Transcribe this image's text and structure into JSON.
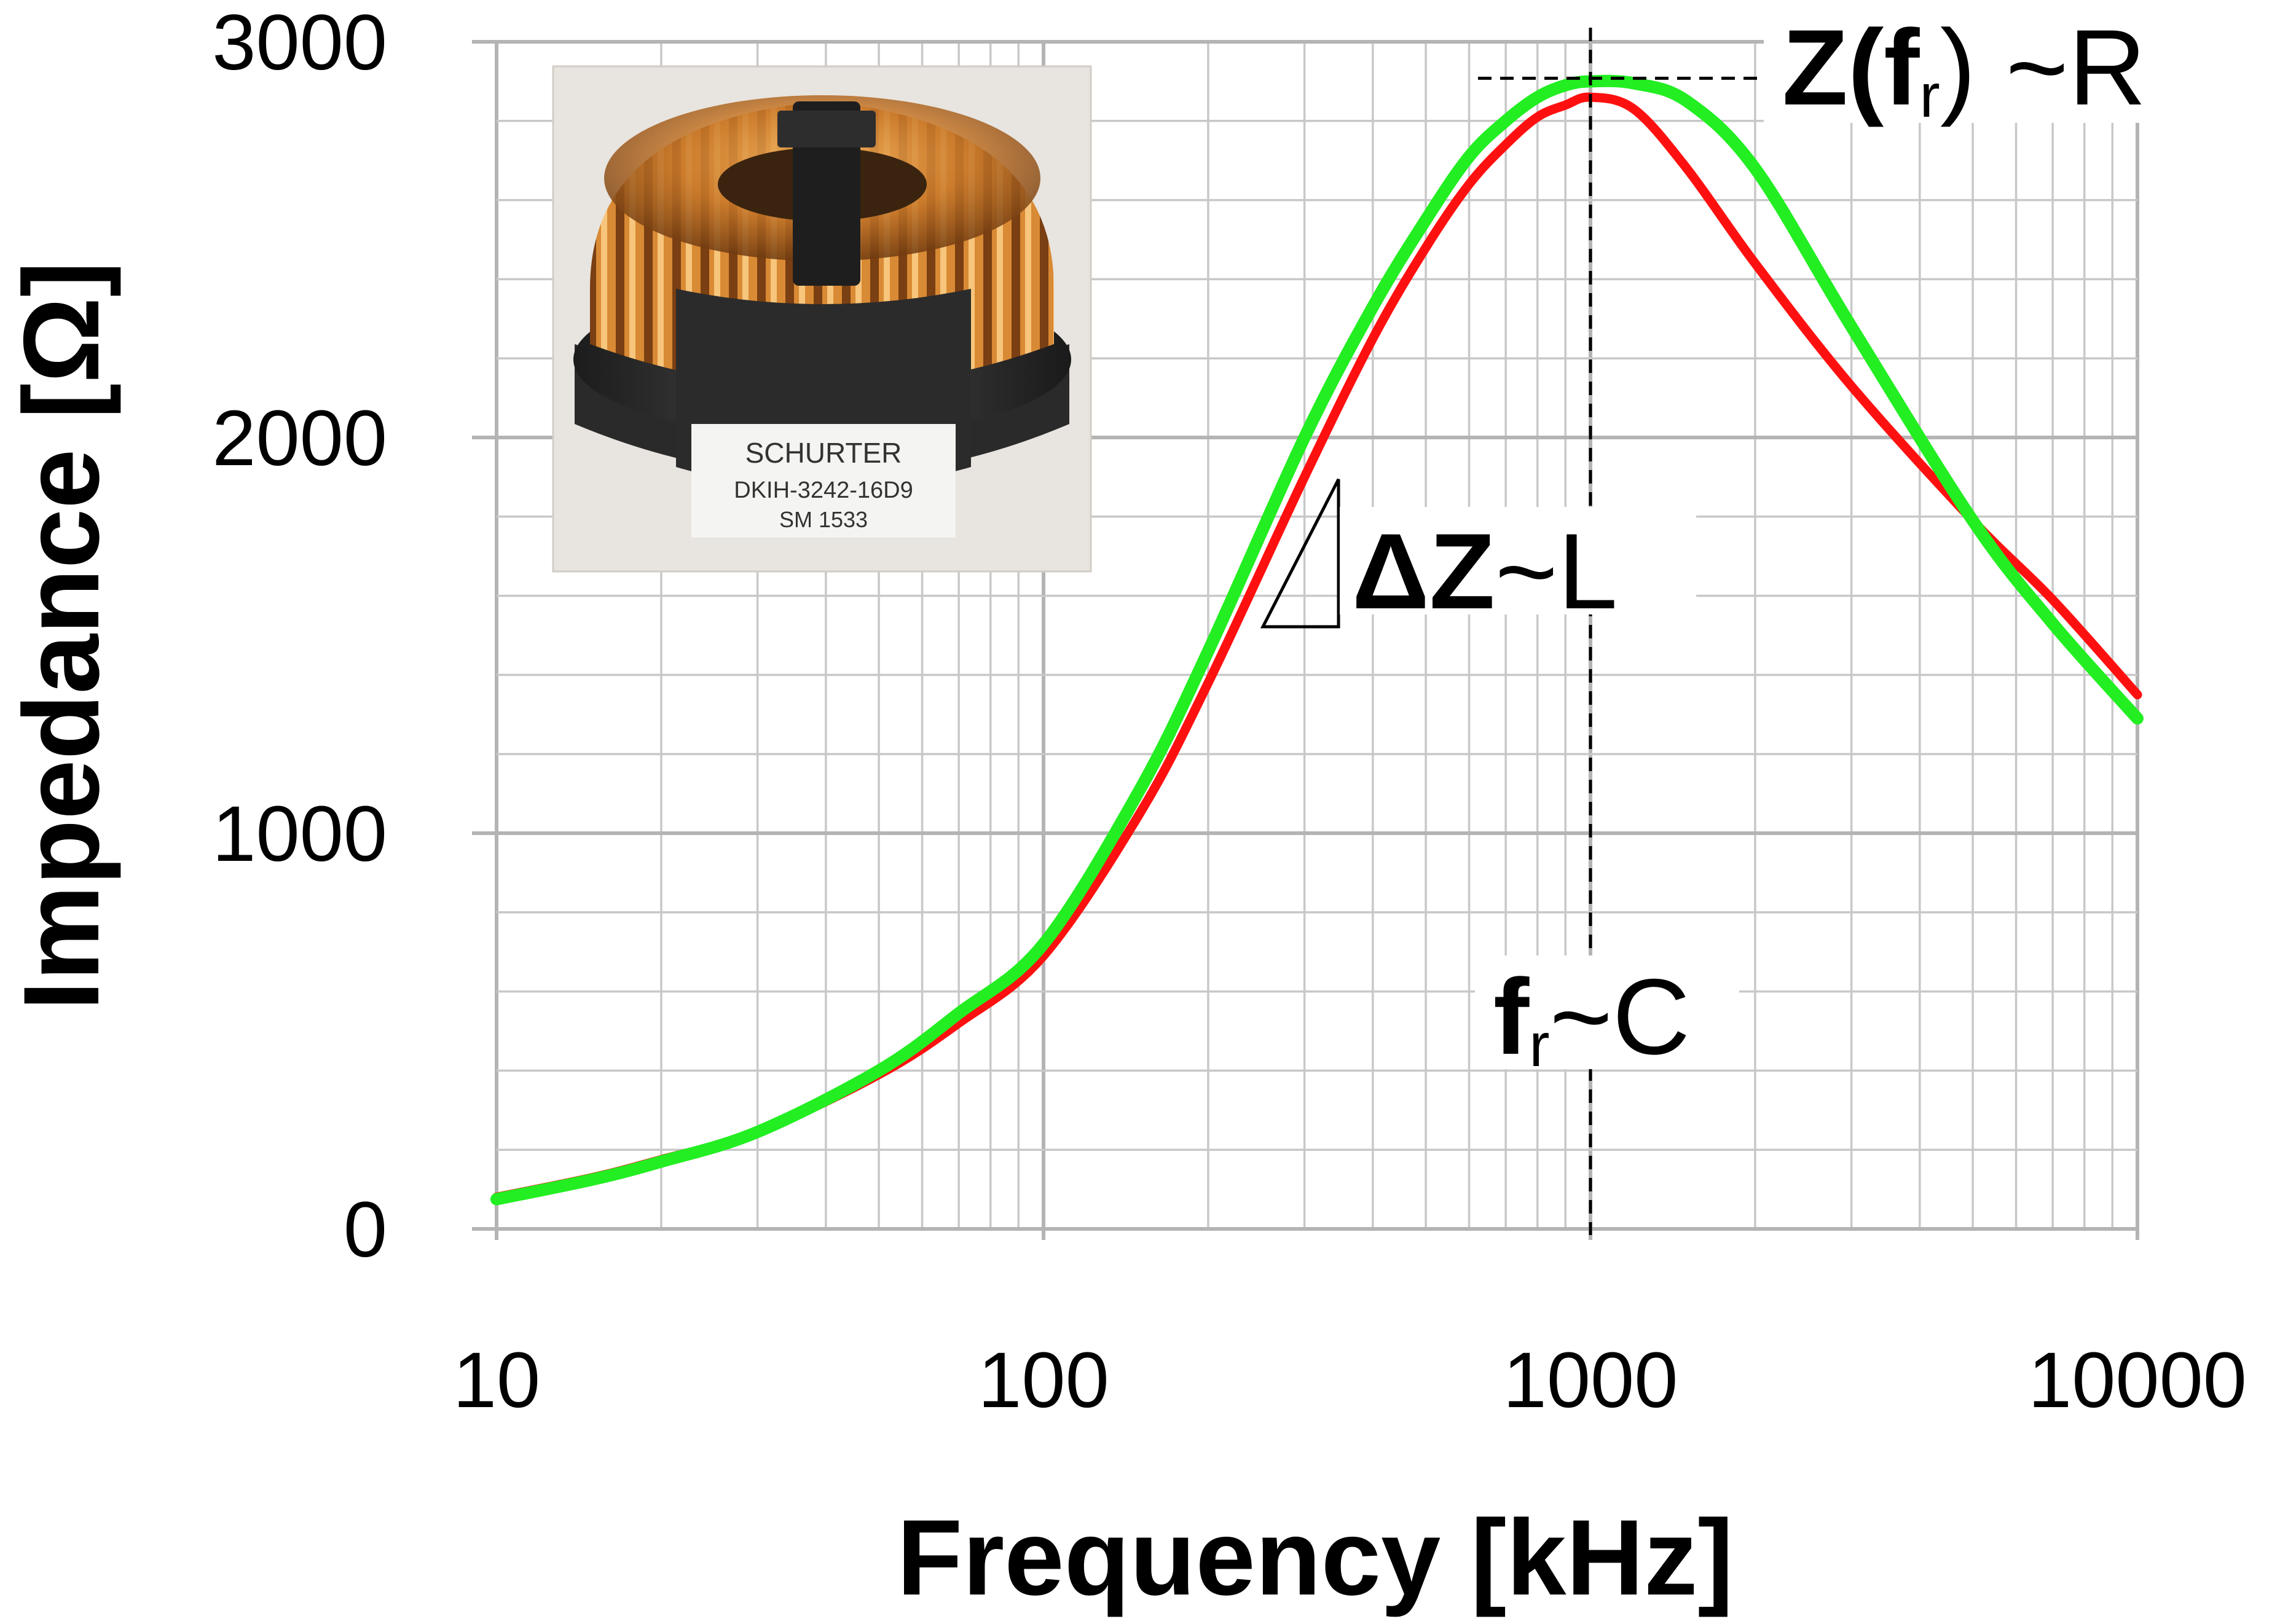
{
  "colors": {
    "red_series": "#ff1010",
    "green_series": "#22ee22"
  },
  "chart_data": {
    "type": "line",
    "title": "",
    "xlabel": "Frequency [kHz]",
    "ylabel": "Impedance  [Ω]",
    "x_scale": "log",
    "xlim": [
      10,
      10000
    ],
    "ylim": [
      0,
      3000
    ],
    "grid": true,
    "x_ticks": [
      "10",
      "100",
      "1000",
      "10000"
    ],
    "y_ticks": [
      "0",
      "1000",
      "2000",
      "3000"
    ],
    "series": [
      {
        "color": "red",
        "x": [
          10,
          15,
          20,
          30,
          50,
          70,
          100,
          150,
          200,
          300,
          400,
          500,
          600,
          700,
          800,
          900,
          1000,
          1200,
          1500,
          2000,
          3000,
          5000,
          7000,
          10000
        ],
        "y": [
          80,
          130,
          175,
          245,
          390,
          520,
          690,
          1050,
          1380,
          1900,
          2250,
          2480,
          2640,
          2740,
          2810,
          2840,
          2860,
          2830,
          2680,
          2440,
          2130,
          1790,
          1590,
          1350
        ]
      },
      {
        "color": "green",
        "x": [
          10,
          15,
          20,
          30,
          50,
          70,
          100,
          150,
          200,
          300,
          400,
          500,
          600,
          700,
          800,
          900,
          1000,
          1200,
          1500,
          2000,
          3000,
          5000,
          7000,
          10000
        ],
        "y": [
          75,
          125,
          170,
          245,
          400,
          545,
          720,
          1110,
          1460,
          2000,
          2330,
          2550,
          2710,
          2800,
          2860,
          2890,
          2900,
          2895,
          2850,
          2680,
          2280,
          1790,
          1530,
          1290
        ]
      }
    ],
    "annotations": {
      "peak_label": "Z(fr) ~R",
      "slope_label": "ΔZ~L",
      "resonance_label": "fr~C",
      "resonance_freq": 1000,
      "peak_impedance": 2900
    }
  },
  "inset_photo": {
    "brand": "SCHURTER",
    "part_number": "DKIH-3242-16D9",
    "code": "SM  1533"
  }
}
